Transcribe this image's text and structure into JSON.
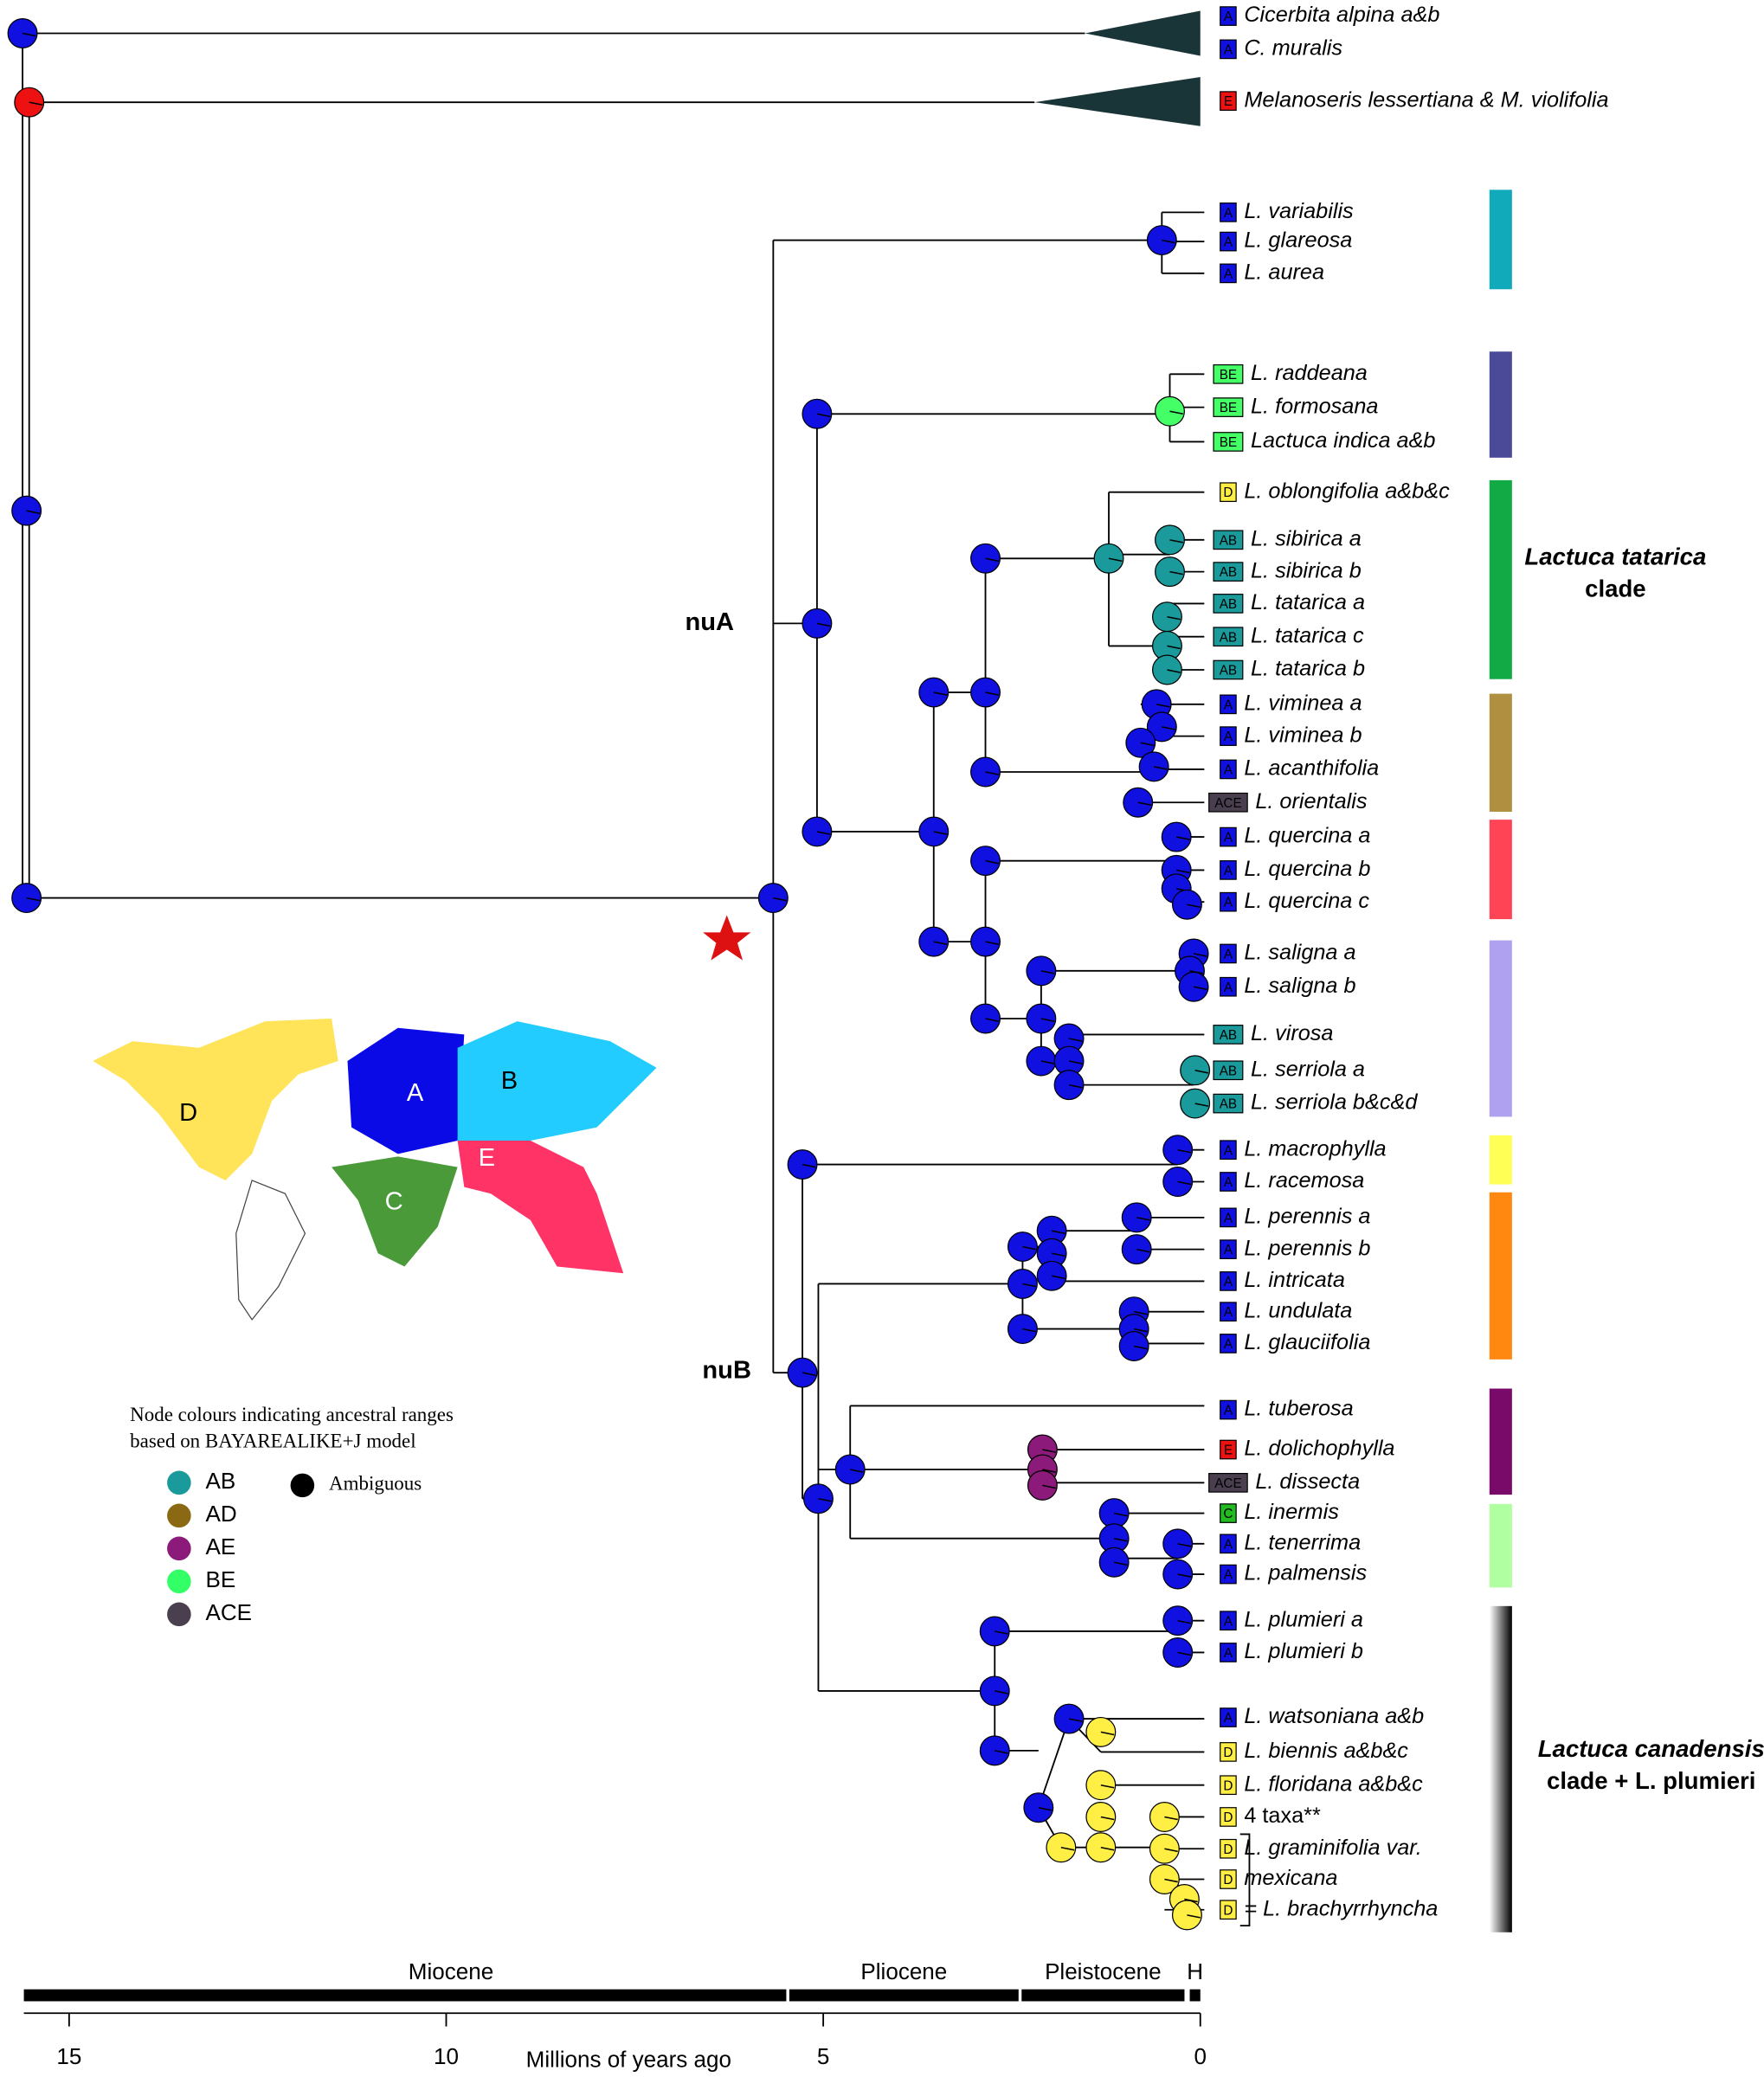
{
  "taxa": [
    {
      "name": "Cicerbita alpina a&b",
      "range": "A"
    },
    {
      "name": "C. muralis",
      "range": "A"
    },
    {
      "name": "Melanoseris lessertiana & M. violifolia",
      "range": "E"
    },
    {
      "name": "L. variabilis",
      "range": "A"
    },
    {
      "name": "L. glareosa",
      "range": "A"
    },
    {
      "name": "L. aurea",
      "range": "A"
    },
    {
      "name": "L. raddeana",
      "range": "BE"
    },
    {
      "name": "L. formosana",
      "range": "BE"
    },
    {
      "name": "Lactuca indica a&b",
      "range": "BE"
    },
    {
      "name": "L. oblongifolia a&b&c",
      "range": "D"
    },
    {
      "name": "L. sibirica a",
      "range": "AB"
    },
    {
      "name": "L. sibirica b",
      "range": "AB"
    },
    {
      "name": "L. tatarica a",
      "range": "AB"
    },
    {
      "name": "L. tatarica c",
      "range": "AB"
    },
    {
      "name": "L. tatarica b",
      "range": "AB"
    },
    {
      "name": "L. viminea a",
      "range": "A"
    },
    {
      "name": "L. viminea b",
      "range": "A"
    },
    {
      "name": "L. acanthifolia",
      "range": "A"
    },
    {
      "name": "L. orientalis",
      "range": "ACE"
    },
    {
      "name": "L. quercina a",
      "range": "A"
    },
    {
      "name": "L. quercina b",
      "range": "A"
    },
    {
      "name": "L. quercina c",
      "range": "A"
    },
    {
      "name": "L. saligna a",
      "range": "A"
    },
    {
      "name": "L. saligna b",
      "range": "A"
    },
    {
      "name": "L. virosa",
      "range": "AB"
    },
    {
      "name": "L. serriola a",
      "range": "AB"
    },
    {
      "name": "L. serriola b&c&d",
      "range": "AB"
    },
    {
      "name": "L. macrophylla",
      "range": "A"
    },
    {
      "name": "L. racemosa",
      "range": "A"
    },
    {
      "name": "L. perennis a",
      "range": "A"
    },
    {
      "name": "L. perennis b",
      "range": "A"
    },
    {
      "name": "L. intricata",
      "range": "A"
    },
    {
      "name": "L. undulata",
      "range": "A"
    },
    {
      "name": "L. glauciifolia",
      "range": "A"
    },
    {
      "name": "L. tuberosa",
      "range": "A"
    },
    {
      "name": "L. dolichophylla",
      "range": "E"
    },
    {
      "name": "L. dissecta",
      "range": "ACE"
    },
    {
      "name": "L. inermis",
      "range": "C"
    },
    {
      "name": "L. tenerrima",
      "range": "A"
    },
    {
      "name": "L. palmensis",
      "range": "A"
    },
    {
      "name": "L. plumieri a",
      "range": "A"
    },
    {
      "name": "L. plumieri b",
      "range": "A"
    },
    {
      "name": "L. watsoniana a&b",
      "range": "A"
    },
    {
      "name": "L. biennis a&b&c",
      "range": "D"
    },
    {
      "name": "L. floridana a&b&c",
      "range": "D"
    },
    {
      "name": "4 taxa**",
      "range": "D"
    },
    {
      "name": "L. graminifolia var.",
      "range": "D"
    },
    {
      "name": "mexicana",
      "range": "D"
    },
    {
      "name": "= L. brachyrrhyncha",
      "range": "D"
    }
  ],
  "range_colors": {
    "A": "#1010e0",
    "B": "#22ccff",
    "C": "#22bb22",
    "D": "#ffee44",
    "E": "#ee1111",
    "AB": "#1a9a9a",
    "AD": "#8b6914",
    "AE": "#8b1a7a",
    "BE": "#44ff66",
    "ACE": "#4a3f4f"
  },
  "node_labels": [
    "nuA",
    "nuB"
  ],
  "clade_bars": [
    "#11aabb",
    "#4a4a99",
    "#11aa44",
    "#b09040",
    "#ff4455",
    "#b0a0f0",
    "#ffff55",
    "#ff8811",
    "#7a0a6a",
    "#b0ffa0",
    "#000000"
  ],
  "clade_labels": [
    {
      "lines": [
        "Lactuca tatarica",
        "clade"
      ]
    },
    {
      "lines": [
        "Lactuca canadensis",
        "clade + L. plumieri"
      ]
    }
  ],
  "legend": {
    "title": [
      "Node colours indicating ancestral ranges",
      "based on BAYAREALIKE+J model"
    ],
    "items": [
      {
        "label": "AB",
        "color": "#1a9a9a"
      },
      {
        "label": "AD",
        "color": "#8b6914"
      },
      {
        "label": "AE",
        "color": "#8b1a7a"
      },
      {
        "label": "BE",
        "color": "#33ff66"
      },
      {
        "label": "ACE",
        "color": "#4a3f4f"
      }
    ],
    "ambiguous": {
      "label": "Ambiguous",
      "color": "#000000"
    }
  },
  "map_regions": [
    {
      "label": "A",
      "color": "#0a0ae6"
    },
    {
      "label": "B",
      "color": "#22ccff"
    },
    {
      "label": "C",
      "color": "#4a9a3a"
    },
    {
      "label": "D",
      "color": "#ffe45a"
    },
    {
      "label": "E",
      "color": "#ff3366"
    }
  ],
  "time_axis": {
    "label": "Millions of years ago",
    "range": [
      15.6,
      0
    ],
    "ticks": [
      15,
      10,
      5,
      0
    ],
    "epochs": [
      {
        "name": "Miocene",
        "start": 15.6,
        "end": 5.49
      },
      {
        "name": "Pliocene",
        "start": 5.45,
        "end": 2.41
      },
      {
        "name": "Pleistocene",
        "start": 2.37,
        "end": 0.21
      },
      {
        "name": "H",
        "start": 0.14,
        "end": 0
      }
    ]
  }
}
